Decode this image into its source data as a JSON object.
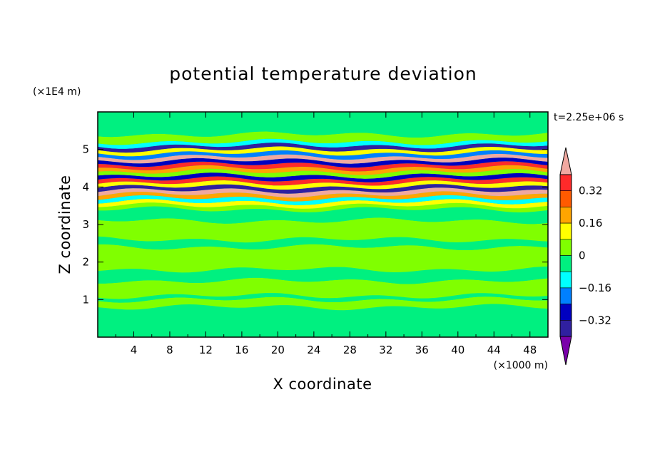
{
  "chart_data": {
    "type": "heatmap",
    "title": "potential temperature deviation",
    "xlabel": "X coordinate",
    "ylabel": "Z coordinate",
    "x_unit": "(×1000 m)",
    "y_unit": "(×1E4 m)",
    "time_label": "t=2.25e+06 s",
    "xlim": [
      0,
      50
    ],
    "ylim": [
      0,
      6
    ],
    "x_ticks": [
      "4",
      "8",
      "12",
      "16",
      "20",
      "24",
      "28",
      "32",
      "36",
      "40",
      "44",
      "48"
    ],
    "y_ticks": [
      "1",
      "2",
      "3",
      "4",
      "5"
    ],
    "colorbar": {
      "labels": [
        "0.32",
        "0.16",
        "0",
        "-0.16",
        "-0.32"
      ],
      "bins": [
        {
          "range": "> 0.40",
          "color": "#f0a8a0"
        },
        {
          "range": "0.32 to 0.40",
          "color": "#ff2a2a"
        },
        {
          "range": "0.24 to 0.32",
          "color": "#ff5a00"
        },
        {
          "range": "0.16 to 0.24",
          "color": "#ffa500"
        },
        {
          "range": "0.08 to 0.16",
          "color": "#ffff00"
        },
        {
          "range": "0 to 0.08",
          "color": "#80ff00"
        },
        {
          "range": "-0.08 to 0",
          "color": "#00f080"
        },
        {
          "range": "-0.16 to -0.08",
          "color": "#00ffff"
        },
        {
          "range": "-0.24 to -0.16",
          "color": "#0080ff"
        },
        {
          "range": "-0.32 to -0.24",
          "color": "#0000c0"
        },
        {
          "range": "-0.40 to -0.32",
          "color": "#3020a0"
        },
        {
          "range": "< -0.40",
          "color": "#7a00aa"
        }
      ]
    },
    "bands": [
      {
        "z": [
          0.0,
          0.8
        ],
        "color": "#00f080"
      },
      {
        "z": [
          0.8,
          1.0
        ],
        "color": "#80ff00"
      },
      {
        "z": [
          1.0,
          1.1
        ],
        "color": "#00f080"
      },
      {
        "z": [
          1.1,
          1.5
        ],
        "color": "#80ff00"
      },
      {
        "z": [
          1.5,
          1.8
        ],
        "color": "#00f080"
      },
      {
        "z": [
          1.8,
          2.4
        ],
        "color": "#80ff00"
      },
      {
        "z": [
          2.4,
          2.6
        ],
        "color": "#00f080"
      },
      {
        "z": [
          2.6,
          3.1
        ],
        "color": "#80ff00"
      },
      {
        "z": [
          3.1,
          3.4
        ],
        "color": "#00f080"
      },
      {
        "z": [
          3.4,
          3.5
        ],
        "color": "#80ff00"
      },
      {
        "z": [
          3.5,
          3.6
        ],
        "color": "#ffff00"
      },
      {
        "z": [
          3.6,
          3.7
        ],
        "color": "#00ffff"
      },
      {
        "z": [
          3.7,
          3.8
        ],
        "color": "#ffa500"
      },
      {
        "z": [
          3.8,
          3.9
        ],
        "color": "#f0a8a0"
      },
      {
        "z": [
          3.9,
          4.0
        ],
        "color": "#3020a0"
      },
      {
        "z": [
          4.0,
          4.1
        ],
        "color": "#ffff00"
      },
      {
        "z": [
          4.1,
          4.2
        ],
        "color": "#ff2a2a"
      },
      {
        "z": [
          4.2,
          4.3
        ],
        "color": "#0000c0"
      },
      {
        "z": [
          4.3,
          4.4
        ],
        "color": "#80ff00"
      },
      {
        "z": [
          4.4,
          4.5
        ],
        "color": "#ffa500"
      },
      {
        "z": [
          4.5,
          4.6
        ],
        "color": "#ff2a2a"
      },
      {
        "z": [
          4.6,
          4.7
        ],
        "color": "#0000c0"
      },
      {
        "z": [
          4.7,
          4.8
        ],
        "color": "#f0a8a0"
      },
      {
        "z": [
          4.8,
          4.9
        ],
        "color": "#0080ff"
      },
      {
        "z": [
          4.9,
          5.0
        ],
        "color": "#ffff00"
      },
      {
        "z": [
          5.0,
          5.1
        ],
        "color": "#3020a0"
      },
      {
        "z": [
          5.1,
          5.2
        ],
        "color": "#00ffff"
      },
      {
        "z": [
          5.2,
          5.4
        ],
        "color": "#80ff00"
      },
      {
        "z": [
          5.4,
          6.0
        ],
        "color": "#00f080"
      }
    ]
  }
}
